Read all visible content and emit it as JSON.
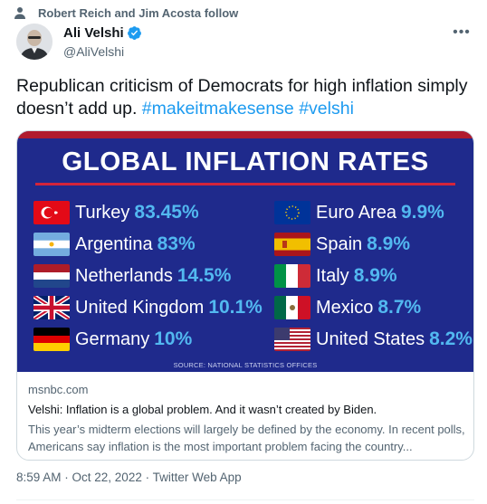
{
  "social_context": {
    "text": "Robert Reich and Jim Acosta follow",
    "icon": "person-icon"
  },
  "author": {
    "name": "Ali Velshi",
    "handle": "@AliVelshi",
    "verified": true
  },
  "tweet": {
    "text_plain": "Republican criticism of Democrats for high inflation simply doesn’t add up. ",
    "hashtags": [
      "#makeitmakesense",
      "#velshi"
    ]
  },
  "card": {
    "image": {
      "title": "GLOBAL INFLATION RATES",
      "left_column": [
        {
          "country": "Turkey",
          "rate": "83.45%",
          "flag": "turkey-flag"
        },
        {
          "country": "Argentina",
          "rate": "83%",
          "flag": "argentina-flag"
        },
        {
          "country": "Netherlands",
          "rate": "14.5%",
          "flag": "netherlands-flag"
        },
        {
          "country": "United Kingdom",
          "rate": "10.1%",
          "flag": "uk-flag"
        },
        {
          "country": "Germany",
          "rate": "10%",
          "flag": "germany-flag"
        }
      ],
      "right_column": [
        {
          "country": "Euro Area",
          "rate": "9.9%",
          "flag": "eu-flag"
        },
        {
          "country": "Spain",
          "rate": "8.9%",
          "flag": "spain-flag"
        },
        {
          "country": "Italy",
          "rate": "8.9%",
          "flag": "italy-flag"
        },
        {
          "country": "Mexico",
          "rate": "8.7%",
          "flag": "mexico-flag"
        },
        {
          "country": "United States",
          "rate": "8.2%",
          "flag": "us-flag"
        }
      ],
      "source": "SOURCE: NATIONAL STATISTICS OFFICES"
    },
    "domain": "msnbc.com",
    "title": "Velshi: Inflation is a global problem. And it wasn’t created by Biden.",
    "description": "This year’s midterm elections will largely be defined by the economy. In recent polls, Americans say inflation is the most important problem facing the country..."
  },
  "meta": {
    "time": "8:59 AM",
    "sep1": " · ",
    "date": "Oct 22, 2022",
    "sep2": " · ",
    "source": "Twitter Web App"
  },
  "colors": {
    "accent": "#1d9bf0",
    "graphic_bg": "#1f2a8c",
    "rate_color": "#52b8f0",
    "muted": "#536471"
  }
}
